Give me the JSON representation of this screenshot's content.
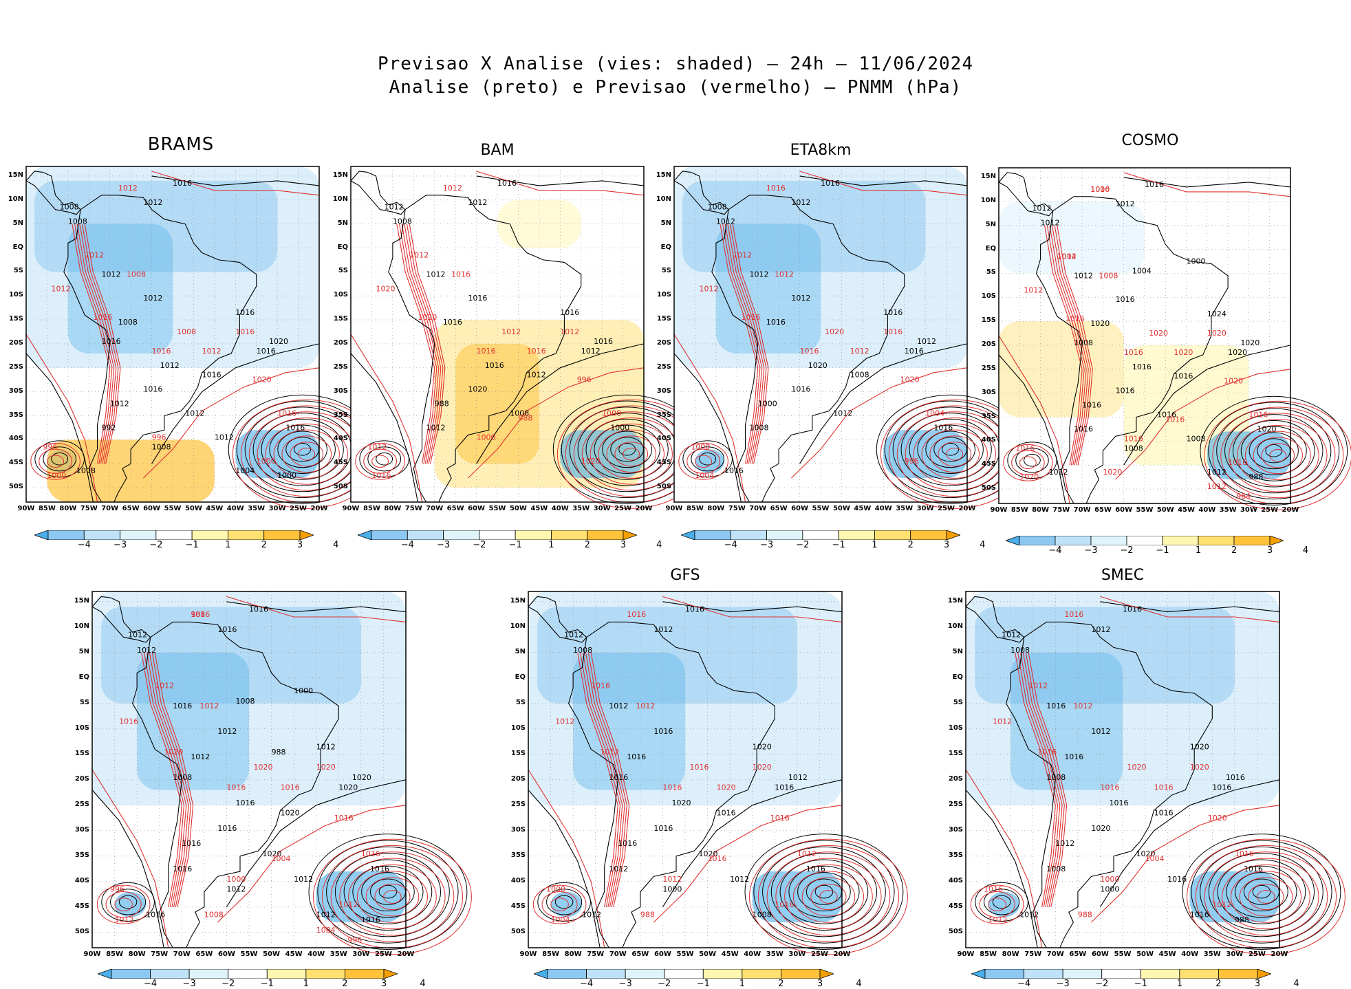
{
  "figure": {
    "title_line1": "Previsao X Analise (vies: shaded) – 24h – 11/06/2024",
    "title_line2": "Analise (preto) e Previsao (vermelho) – PNMM (hPa)"
  },
  "axes": {
    "lat_labels": [
      "15N",
      "10N",
      "5N",
      "EQ",
      "5S",
      "10S",
      "15S",
      "20S",
      "25S",
      "30S",
      "35S",
      "40S",
      "45S",
      "50S"
    ],
    "lon_labels": [
      "90W",
      "85W",
      "80W",
      "75W",
      "70W",
      "65W",
      "60W",
      "55W",
      "50W",
      "45W",
      "40W",
      "35W",
      "30W",
      "25W",
      "20W"
    ]
  },
  "colorbar": {
    "labels": [
      "−4",
      "−3",
      "−2",
      "−1",
      "1",
      "2",
      "3",
      "4"
    ],
    "colors": [
      "#4aaee8",
      "#8cc8f2",
      "#bfe2f8",
      "#dff3fb",
      "#ffffff",
      "#fff6b0",
      "#ffe070",
      "#ffc23a",
      "#f5a000"
    ]
  },
  "colors": {
    "analysis_contour": "#000000",
    "forecast_contour": "#e03030",
    "coast": "#000000",
    "grid": "#888888"
  },
  "panels": [
    {
      "name": "BRAMS",
      "bias": "negative-dominant",
      "labels_black": [
        "1016",
        "1012",
        "1008",
        "1008",
        "1012",
        "1012",
        "1008",
        "1016",
        "1016",
        "1012",
        "1016",
        "1020",
        "1016",
        "1012",
        "1016",
        "1012",
        "992",
        "1008",
        "1004",
        "1008",
        "1016",
        "1012",
        "1000"
      ],
      "labels_red": [
        "1012",
        "1012",
        "1008",
        "1012",
        "1016",
        "1016",
        "1008",
        "1016",
        "1012",
        "1020",
        "1016",
        "1000",
        "996",
        "1000",
        "996"
      ]
    },
    {
      "name": "BAM",
      "bias": "positive-dominant",
      "labels_black": [
        "1016",
        "1012",
        "1012",
        "1008",
        "1012",
        "1016",
        "1016",
        "1016",
        "1012",
        "1016",
        "1020",
        "1016",
        "1012",
        "1008",
        "1000",
        "988",
        "1012"
      ],
      "labels_red": [
        "1012",
        "1012",
        "1016",
        "1020",
        "1020",
        "1016",
        "1012",
        "1012",
        "1016",
        "996",
        "1008",
        "1020",
        "1012",
        "1016",
        "1000",
        "988"
      ]
    },
    {
      "name": "ETA8km",
      "bias": "negative-dominant",
      "labels_black": [
        "1016",
        "1012",
        "1008",
        "1012",
        "1012",
        "1012",
        "1016",
        "1016",
        "1016",
        "1020",
        "1016",
        "1012",
        "1008",
        "1012",
        "1016",
        "1000",
        "1008",
        "1016"
      ],
      "labels_red": [
        "1016",
        "1012",
        "1012",
        "1012",
        "1016",
        "1016",
        "1020",
        "1016",
        "1012",
        "1020",
        "1004",
        "996",
        "1000",
        "1004"
      ]
    },
    {
      "name": "COSMO",
      "bias": "mixed",
      "labels_black": [
        "1016",
        "1012",
        "1012",
        "1012",
        "1012",
        "1016",
        "1020",
        "1024",
        "1020",
        "1016",
        "1016",
        "1020",
        "1016",
        "1016",
        "1020",
        "1016",
        "1016",
        "1012",
        "1012",
        "1008",
        "1008",
        "1008",
        "988",
        "1000",
        "1004"
      ],
      "labels_red": [
        "1016",
        "1012",
        "1008",
        "1012",
        "1016",
        "1016",
        "1020",
        "1020",
        "1020",
        "1020",
        "1016",
        "1016",
        "1016",
        "1020",
        "1016",
        "1016",
        "1020",
        "1012",
        "984",
        "1000",
        "1004"
      ]
    },
    {
      "name": "",
      "bias": "negative-dominant",
      "labels_black": [
        "1016",
        "1016",
        "1012",
        "1012",
        "1016",
        "1012",
        "1012",
        "1012",
        "1020",
        "1016",
        "1016",
        "1020",
        "1020",
        "1020",
        "1016",
        "1016",
        "1016",
        "1016",
        "1012",
        "1012",
        "1008",
        "1012",
        "1016",
        "1000",
        "1008",
        "988"
      ],
      "labels_red": [
        "1016",
        "1012",
        "1012",
        "1016",
        "1020",
        "1016",
        "1020",
        "1020",
        "1016",
        "1016",
        "1016",
        "1012",
        "996",
        "1012",
        "1000",
        "1004",
        "1008",
        "1004",
        "996",
        "988"
      ]
    },
    {
      "name": "GFS",
      "bias": "negative-dominant",
      "labels_black": [
        "1016",
        "1012",
        "1012",
        "1008",
        "1012",
        "1016",
        "1016",
        "1020",
        "1016",
        "1020",
        "1016",
        "1012",
        "1016",
        "1020",
        "1016",
        "1016",
        "1012",
        "1012",
        "1008",
        "1000",
        "1016",
        "1012"
      ],
      "labels_red": [
        "1016",
        "1016",
        "1012",
        "1012",
        "1012",
        "1016",
        "1016",
        "1020",
        "1020",
        "1016",
        "1012",
        "1016",
        "1000",
        "1004",
        "1012",
        "1016",
        "988"
      ]
    },
    {
      "name": "SMEC",
      "bias": "negative-dominant",
      "labels_black": [
        "1016",
        "1012",
        "1012",
        "1008",
        "1016",
        "1012",
        "1016",
        "1020",
        "1016",
        "1016",
        "1020",
        "1016",
        "1016",
        "1020",
        "1016",
        "1012",
        "1008",
        "1012",
        "1016",
        "1000",
        "1008",
        "1016",
        "988"
      ],
      "labels_red": [
        "1016",
        "1012",
        "1012",
        "1012",
        "1016",
        "1016",
        "1020",
        "1020",
        "1016",
        "1020",
        "1016",
        "1012",
        "1016",
        "1012",
        "1000",
        "1004",
        "988"
      ]
    }
  ]
}
